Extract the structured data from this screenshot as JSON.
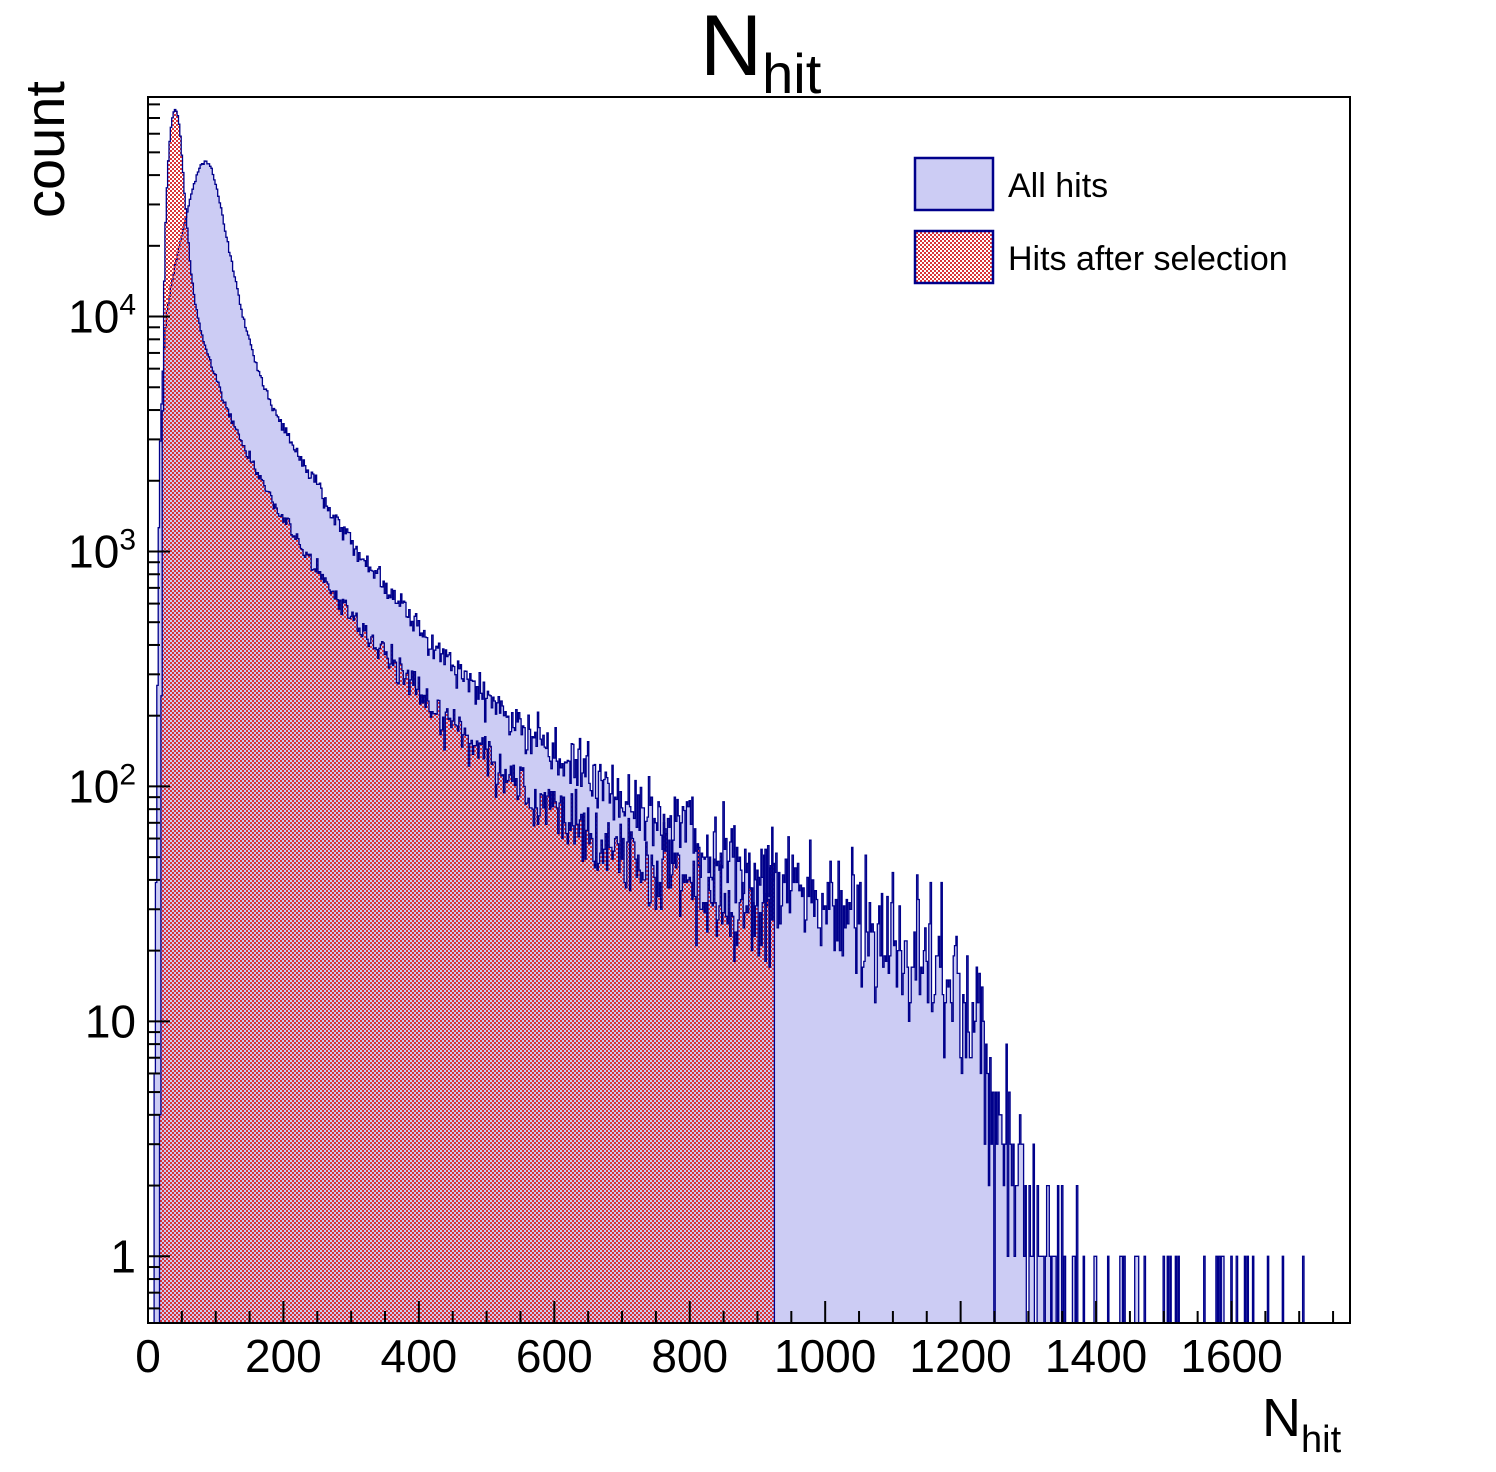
{
  "title": {
    "text": "N",
    "subscript": "hit"
  },
  "y_axis": {
    "title": "count",
    "scale": "log",
    "range": [
      0.52,
      86000
    ],
    "tick_labels": [
      {
        "value": 1,
        "base": "1",
        "exp": ""
      },
      {
        "value": 10,
        "base": "10",
        "exp": ""
      },
      {
        "value": 100,
        "base": "10",
        "exp": "2"
      },
      {
        "value": 1000,
        "base": "10",
        "exp": "3"
      },
      {
        "value": 10000,
        "base": "10",
        "exp": "4"
      }
    ]
  },
  "x_axis": {
    "title": "N",
    "title_subscript": "hit",
    "range": [
      0,
      1775
    ],
    "minor_tick_step": 50,
    "major_tick_step": 200,
    "tick_labels": [
      {
        "value": 0,
        "label": "0"
      },
      {
        "value": 200,
        "label": "200"
      },
      {
        "value": 400,
        "label": "400"
      },
      {
        "value": 600,
        "label": "600"
      },
      {
        "value": 800,
        "label": "800"
      },
      {
        "value": 1000,
        "label": "1000"
      },
      {
        "value": 1200,
        "label": "1200"
      },
      {
        "value": 1400,
        "label": "1400"
      },
      {
        "value": 1600,
        "label": "1600"
      }
    ]
  },
  "legend": {
    "entries": [
      {
        "label": "All hits",
        "swatch": "solid-lavender"
      },
      {
        "label": "Hits after selection",
        "swatch": "red-crosshatch"
      }
    ]
  },
  "colors": {
    "line": "#00008b",
    "fill_all_hits": "#ccccf4",
    "hatch_red": "#d93438",
    "axis": "#000000",
    "background": "#ffffff"
  },
  "chart_data": {
    "type": "histogram-overlay",
    "x_label": "N_hit",
    "y_label": "count",
    "y_scale": "log",
    "x_range": [
      0,
      1775
    ],
    "y_range": [
      0.52,
      86000
    ],
    "bin_width": 2,
    "summary": {
      "all_hits_peak": {
        "x": 85,
        "count": 45600
      },
      "selection_peak": {
        "x": 40,
        "count": 76000
      },
      "selection_cutoff_x": 926,
      "all_hits_dense_end_x": 1250,
      "all_hits_last_entry_x": 1755
    },
    "series": [
      {
        "name": "All hits",
        "style": "solid",
        "seed": 20240,
        "noise_boost": 1.6,
        "cutoff": 1775,
        "envelope": [
          [
            7,
            0.4
          ],
          [
            8,
            1
          ],
          [
            9,
            2.5
          ],
          [
            10,
            6
          ],
          [
            11,
            15
          ],
          [
            12,
            40
          ],
          [
            13,
            110
          ],
          [
            14,
            280
          ],
          [
            15,
            650
          ],
          [
            16,
            1300
          ],
          [
            17,
            2100
          ],
          [
            18,
            2900
          ],
          [
            19,
            3600
          ],
          [
            20,
            4300
          ],
          [
            22,
            5900
          ],
          [
            24,
            7400
          ],
          [
            26,
            8900
          ],
          [
            28,
            10300
          ],
          [
            32,
            12500
          ],
          [
            36,
            14500
          ],
          [
            40,
            16600
          ],
          [
            44,
            18700
          ],
          [
            48,
            21000
          ],
          [
            52,
            23500
          ],
          [
            56,
            26300
          ],
          [
            60,
            29500
          ],
          [
            64,
            33000
          ],
          [
            68,
            36600
          ],
          [
            72,
            40000
          ],
          [
            76,
            42800
          ],
          [
            80,
            44700
          ],
          [
            83,
            45500
          ],
          [
            86,
            45600
          ],
          [
            89,
            45000
          ],
          [
            92,
            43500
          ],
          [
            95,
            41200
          ],
          [
            98,
            38500
          ],
          [
            101,
            35500
          ],
          [
            104,
            32500
          ],
          [
            107,
            29600
          ],
          [
            110,
            26800
          ],
          [
            113,
            24200
          ],
          [
            116,
            21900
          ],
          [
            120,
            19200
          ],
          [
            124,
            16800
          ],
          [
            128,
            14800
          ],
          [
            132,
            13100
          ],
          [
            137,
            11200
          ],
          [
            142,
            9700
          ],
          [
            148,
            8300
          ],
          [
            154,
            7200
          ],
          [
            160,
            6300
          ],
          [
            167,
            5450
          ],
          [
            175,
            4750
          ],
          [
            183,
            4200
          ],
          [
            192,
            3700
          ],
          [
            202,
            3250
          ],
          [
            213,
            2850
          ],
          [
            225,
            2500
          ],
          [
            238,
            2180
          ],
          [
            252,
            1900
          ],
          [
            267,
            1500
          ],
          [
            283,
            1280
          ],
          [
            300,
            1090
          ],
          [
            318,
            930
          ],
          [
            337,
            795
          ],
          [
            357,
            680
          ],
          [
            378,
            580
          ],
          [
            400,
            470
          ],
          [
            423,
            390
          ],
          [
            447,
            330
          ],
          [
            472,
            282
          ],
          [
            500,
            240
          ],
          [
            530,
            202
          ],
          [
            562,
            170
          ],
          [
            596,
            143
          ],
          [
            632,
            120
          ],
          [
            670,
            101
          ],
          [
            710,
            85
          ],
          [
            752,
            72
          ],
          [
            796,
            61
          ],
          [
            842,
            52
          ],
          [
            890,
            44
          ],
          [
            938,
            37
          ],
          [
            988,
            31
          ],
          [
            1040,
            26
          ],
          [
            1092,
            22
          ],
          [
            1145,
            18.5
          ],
          [
            1190,
            15.5
          ],
          [
            1210,
            12.5
          ],
          [
            1225,
            9.5
          ],
          [
            1240,
            7
          ],
          [
            1255,
            4.8
          ],
          [
            1268,
            3.2
          ],
          [
            1282,
            2.1
          ],
          [
            1298,
            1.4
          ],
          [
            1318,
            0.95
          ],
          [
            1342,
            0.68
          ],
          [
            1370,
            0.5
          ],
          [
            1405,
            0.3
          ],
          [
            1445,
            0.22
          ],
          [
            1490,
            0.17
          ],
          [
            1540,
            0.13
          ],
          [
            1595,
            0.1
          ],
          [
            1650,
            0.08
          ],
          [
            1705,
            0.065
          ],
          [
            1760,
            0.055
          ]
        ]
      },
      {
        "name": "Hits after selection",
        "style": "hatch",
        "seed": 777,
        "noise_boost": 1.5,
        "cutoff": 926,
        "envelope": [
          [
            17,
            0.5
          ],
          [
            18,
            3
          ],
          [
            19,
            30
          ],
          [
            20,
            250
          ],
          [
            21,
            1300
          ],
          [
            22,
            4000
          ],
          [
            23,
            8500
          ],
          [
            24,
            14000
          ],
          [
            25,
            19500
          ],
          [
            26,
            25000
          ],
          [
            28,
            35500
          ],
          [
            30,
            46000
          ],
          [
            32,
            55500
          ],
          [
            34,
            63500
          ],
          [
            36,
            69500
          ],
          [
            38,
            73800
          ],
          [
            40,
            76000
          ],
          [
            42,
            75300
          ],
          [
            44,
            72000
          ],
          [
            46,
            66000
          ],
          [
            48,
            58000
          ],
          [
            50,
            49000
          ],
          [
            52,
            40800
          ],
          [
            54,
            33800
          ],
          [
            56,
            28200
          ],
          [
            58,
            23700
          ],
          [
            60,
            20100
          ],
          [
            63,
            16500
          ],
          [
            66,
            13800
          ],
          [
            70,
            11400
          ],
          [
            74,
            9800
          ],
          [
            79,
            8500
          ],
          [
            84,
            7500
          ],
          [
            90,
            6600
          ],
          [
            96,
            5900
          ],
          [
            103,
            5200
          ],
          [
            110,
            4600
          ],
          [
            118,
            4000
          ],
          [
            127,
            3500
          ],
          [
            136,
            3050
          ],
          [
            146,
            2650
          ],
          [
            157,
            2300
          ],
          [
            169,
            1980
          ],
          [
            182,
            1700
          ],
          [
            196,
            1450
          ],
          [
            210,
            1240
          ],
          [
            226,
            1050
          ],
          [
            243,
            890
          ],
          [
            261,
            750
          ],
          [
            280,
            635
          ],
          [
            300,
            535
          ],
          [
            322,
            450
          ],
          [
            345,
            378
          ],
          [
            370,
            315
          ],
          [
            396,
            262
          ],
          [
            417,
            220
          ],
          [
            440,
            188
          ],
          [
            465,
            160
          ],
          [
            492,
            137
          ],
          [
            521,
            117
          ],
          [
            552,
            100
          ],
          [
            585,
            85
          ],
          [
            620,
            72
          ],
          [
            657,
            61
          ],
          [
            696,
            52
          ],
          [
            737,
            45
          ],
          [
            780,
            39
          ],
          [
            825,
            34
          ],
          [
            872,
            29
          ],
          [
            920,
            25
          ],
          [
            924,
            24
          ]
        ]
      }
    ]
  }
}
